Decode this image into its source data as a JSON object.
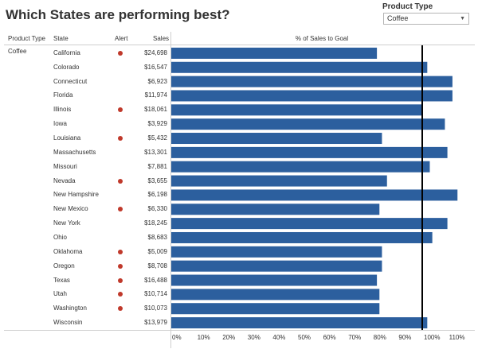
{
  "title": "Which States are performing best?",
  "filter": {
    "label": "Product Type",
    "selected": "Coffee"
  },
  "headers": {
    "product_type": "Product Type",
    "state": "State",
    "alert": "Alert",
    "sales": "Sales",
    "chart": "% of Sales to Goal"
  },
  "product_type_value": "Coffee",
  "colors": {
    "bar": "#2c5f9e",
    "alert": "#c0392b",
    "goal_line": "#000000"
  },
  "chart_data": {
    "type": "bar",
    "orientation": "horizontal",
    "title": "% of Sales to Goal",
    "x_unit": "percent",
    "xlim": [
      0,
      120
    ],
    "x_ticks": [
      "0%",
      "10%",
      "20%",
      "30%",
      "40%",
      "50%",
      "60%",
      "70%",
      "80%",
      "90%",
      "100%",
      "110%"
    ],
    "reference_line": 100,
    "categories": [
      "California",
      "Colorado",
      "Connecticut",
      "Florida",
      "Illinois",
      "Iowa",
      "Louisiana",
      "Massachusetts",
      "Missouri",
      "Nevada",
      "New Hampshire",
      "New Mexico",
      "New York",
      "Ohio",
      "Oklahoma",
      "Oregon",
      "Texas",
      "Utah",
      "Washington",
      "Wisconsin"
    ],
    "values": [
      82,
      102,
      112,
      112,
      100,
      109,
      84,
      110,
      103,
      86,
      114,
      83,
      110,
      104,
      84,
      84,
      82,
      83,
      83,
      102
    ],
    "sales": [
      "$24,698",
      "$16,547",
      "$6,923",
      "$11,974",
      "$18,061",
      "$3,929",
      "$5,432",
      "$13,301",
      "$7,881",
      "$3,655",
      "$6,198",
      "$6,330",
      "$18,245",
      "$8,683",
      "$5,009",
      "$8,708",
      "$16,488",
      "$10,714",
      "$10,073",
      "$13,979"
    ],
    "alert": [
      true,
      false,
      false,
      false,
      true,
      false,
      true,
      false,
      false,
      true,
      false,
      true,
      false,
      false,
      true,
      true,
      true,
      true,
      true,
      false
    ]
  }
}
